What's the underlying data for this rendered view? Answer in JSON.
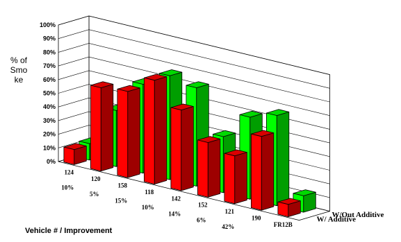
{
  "chart_data": {
    "type": "bar",
    "ylabel": "% of Smoke",
    "xlabel": "Vehicle # / Improvement",
    "ylim": [
      0,
      100
    ],
    "yticks": [
      "0%",
      "10%",
      "20%",
      "30%",
      "40%",
      "50%",
      "60%",
      "70%",
      "80%",
      "90%",
      "100%"
    ],
    "categories": [
      "124",
      "120",
      "158",
      "118",
      "142",
      "152",
      "121",
      "190",
      "FR12B"
    ],
    "improvements": [
      "10%",
      "5%",
      "15%",
      "10%",
      "14%",
      "6%",
      "42%",
      "",
      ""
    ],
    "series": [
      {
        "name": "W/Out Additive",
        "color": "#00ff00",
        "values": [
          12,
          41,
          65,
          76,
          72,
          41,
          60,
          66,
          12
        ]
      },
      {
        "name": "W/ Additive",
        "color": "#ff0000",
        "values": [
          11,
          61,
          63,
          76,
          59,
          40,
          35,
          54,
          9
        ]
      }
    ],
    "grid": true,
    "legend": "right"
  }
}
